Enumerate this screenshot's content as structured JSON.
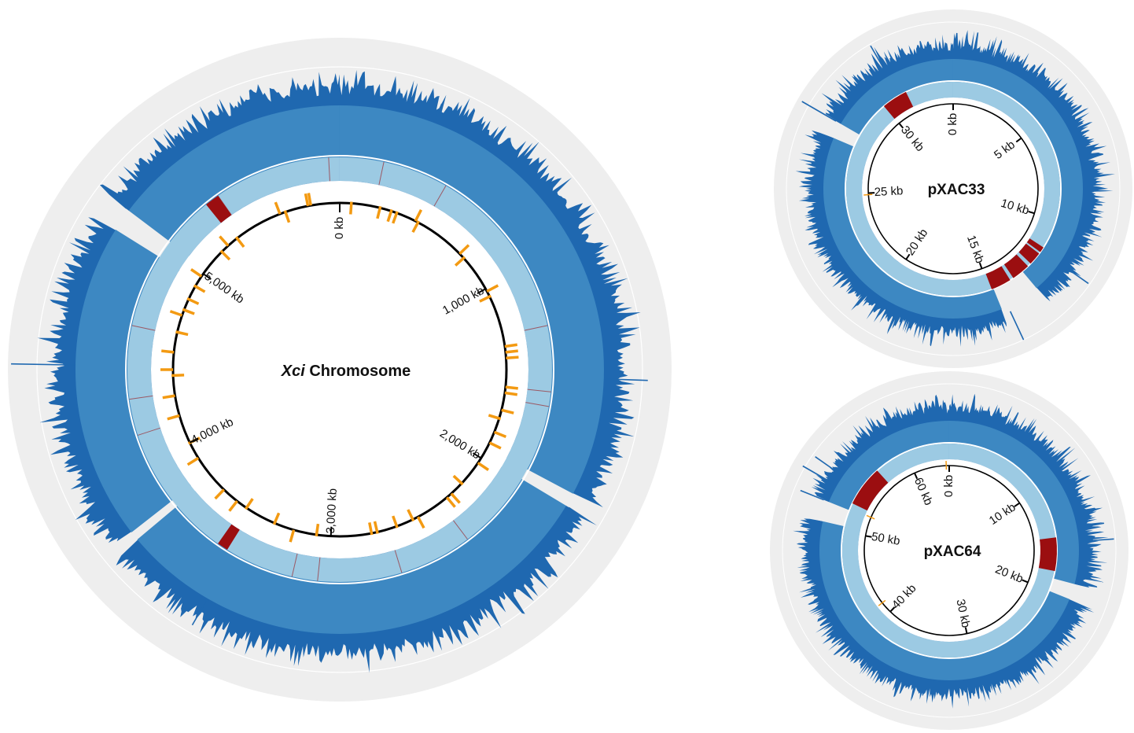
{
  "colors": {
    "outer_bg": "#eeeeee",
    "coverage_outer": "#1f68b0",
    "coverage_band": "#3d88c2",
    "inner_band": "#9ccae3",
    "deletion": "#9b0e10",
    "backbone": "#000000",
    "feature": "#f39a12"
  },
  "chromosome": {
    "title_italic": "Xci",
    "title_rest": " Chromosome",
    "ticks": [
      {
        "kb": 0,
        "label": "0 kb"
      },
      {
        "kb": 1000,
        "label": "1,000 kb"
      },
      {
        "kb": 2000,
        "label": "2,000 kb"
      },
      {
        "kb": 3000,
        "label": "3,000 kb"
      },
      {
        "kb": 4000,
        "label": "4,000 kb"
      },
      {
        "kb": 5000,
        "label": "5,000 kb"
      }
    ]
  },
  "plasmid1": {
    "title": "pXAC33",
    "ticks": [
      {
        "kb": 0,
        "label": "0 kb"
      },
      {
        "kb": 5,
        "label": "5 kb"
      },
      {
        "kb": 10,
        "label": "10 kb"
      },
      {
        "kb": 15,
        "label": "15 kb"
      },
      {
        "kb": 20,
        "label": "20 kb"
      },
      {
        "kb": 25,
        "label": "25 kb"
      },
      {
        "kb": 30,
        "label": "30 kb"
      }
    ]
  },
  "plasmid2": {
    "title": "pXAC64",
    "ticks": [
      {
        "kb": 0,
        "label": "0 kb"
      },
      {
        "kb": 10,
        "label": "10 kb"
      },
      {
        "kb": 20,
        "label": "20 kb"
      },
      {
        "kb": 30,
        "label": "30 kb"
      },
      {
        "kb": 40,
        "label": "40 kb"
      },
      {
        "kb": 50,
        "label": "50 kb"
      },
      {
        "kb": 60,
        "label": "60 kb"
      }
    ]
  }
}
